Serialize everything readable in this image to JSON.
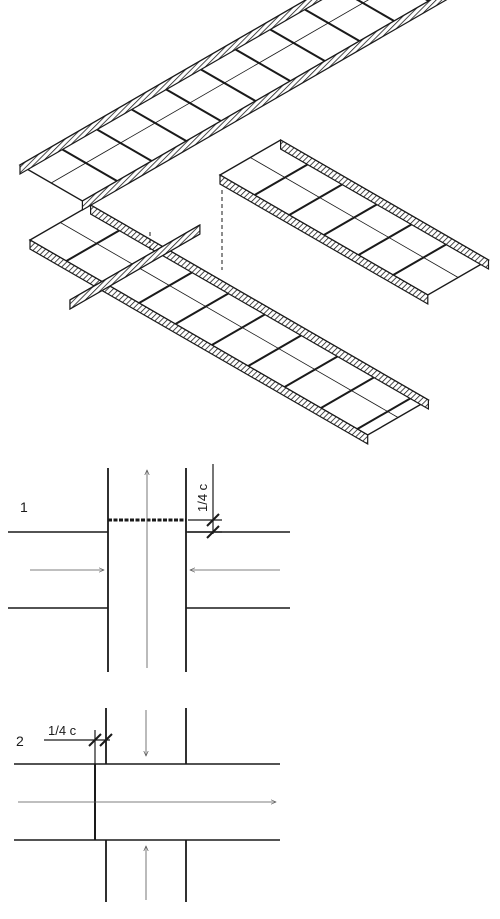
{
  "figure": {
    "iso_view": {
      "icon": "tray-crossing-icon"
    },
    "plan_1": {
      "number": "1",
      "dimension_label": "1/4 c"
    },
    "plan_2": {
      "number": "2",
      "dimension_label": "1/4 c"
    }
  }
}
